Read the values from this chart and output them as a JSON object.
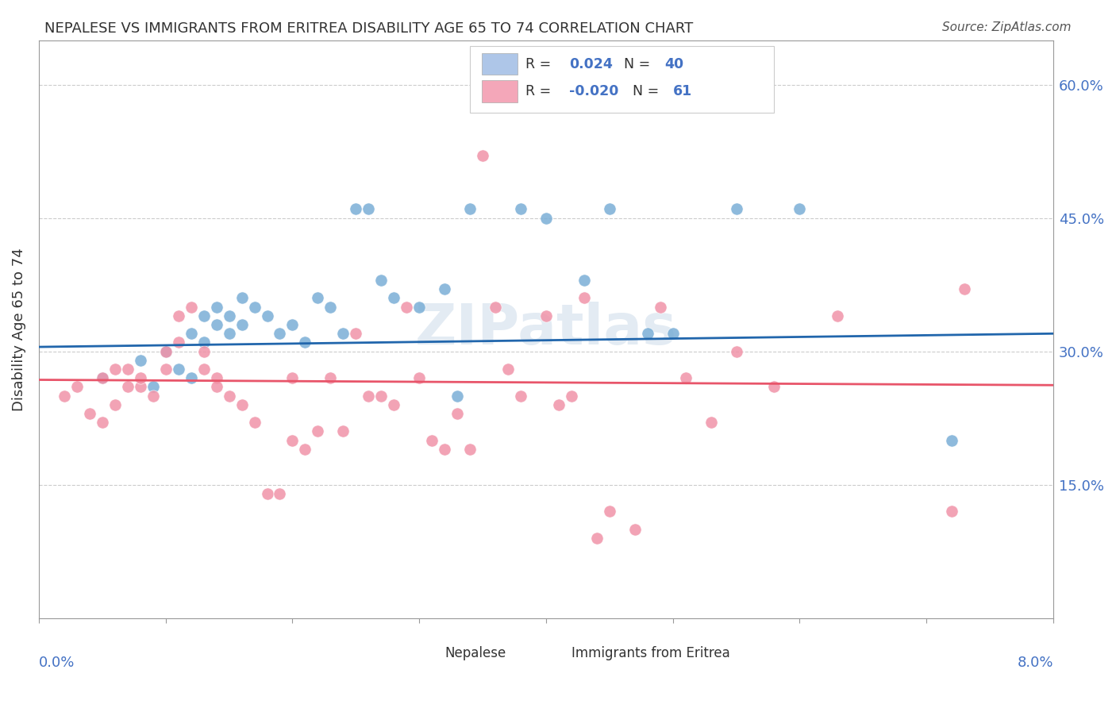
{
  "title": "NEPALESE VS IMMIGRANTS FROM ERITREA DISABILITY AGE 65 TO 74 CORRELATION CHART",
  "source": "Source: ZipAtlas.com",
  "ylabel": "Disability Age 65 to 74",
  "y_tick_labels": [
    "15.0%",
    "30.0%",
    "45.0%",
    "60.0%"
  ],
  "y_tick_values": [
    0.15,
    0.3,
    0.45,
    0.6
  ],
  "x_min": 0.0,
  "x_max": 0.08,
  "y_min": 0.0,
  "y_max": 0.65,
  "legend1_color": "#aec6e8",
  "legend2_color": "#f4a7b9",
  "dot_color_blue": "#7aaed6",
  "dot_color_pink": "#f093a8",
  "trend_color_blue": "#2166ac",
  "trend_color_pink": "#e8556a",
  "watermark": "ZIPatlas",
  "blue_scatter_x": [
    0.005,
    0.008,
    0.009,
    0.01,
    0.011,
    0.012,
    0.012,
    0.013,
    0.013,
    0.014,
    0.014,
    0.015,
    0.015,
    0.016,
    0.016,
    0.017,
    0.018,
    0.019,
    0.02,
    0.021,
    0.022,
    0.023,
    0.024,
    0.025,
    0.026,
    0.027,
    0.028,
    0.03,
    0.032,
    0.033,
    0.034,
    0.038,
    0.04,
    0.043,
    0.045,
    0.048,
    0.05,
    0.055,
    0.06,
    0.072
  ],
  "blue_scatter_y": [
    0.27,
    0.29,
    0.26,
    0.3,
    0.28,
    0.32,
    0.27,
    0.31,
    0.34,
    0.33,
    0.35,
    0.34,
    0.32,
    0.36,
    0.33,
    0.35,
    0.34,
    0.32,
    0.33,
    0.31,
    0.36,
    0.35,
    0.32,
    0.46,
    0.46,
    0.38,
    0.36,
    0.35,
    0.37,
    0.25,
    0.46,
    0.46,
    0.45,
    0.38,
    0.46,
    0.32,
    0.32,
    0.46,
    0.46,
    0.2
  ],
  "pink_scatter_x": [
    0.002,
    0.003,
    0.004,
    0.005,
    0.005,
    0.006,
    0.006,
    0.007,
    0.007,
    0.008,
    0.008,
    0.009,
    0.01,
    0.01,
    0.011,
    0.011,
    0.012,
    0.013,
    0.013,
    0.014,
    0.014,
    0.015,
    0.016,
    0.017,
    0.018,
    0.019,
    0.02,
    0.02,
    0.021,
    0.022,
    0.023,
    0.024,
    0.025,
    0.026,
    0.027,
    0.028,
    0.029,
    0.03,
    0.031,
    0.032,
    0.033,
    0.034,
    0.035,
    0.036,
    0.037,
    0.038,
    0.04,
    0.041,
    0.042,
    0.043,
    0.044,
    0.045,
    0.047,
    0.049,
    0.051,
    0.053,
    0.055,
    0.058,
    0.063,
    0.072,
    0.073
  ],
  "pink_scatter_y": [
    0.25,
    0.26,
    0.23,
    0.27,
    0.22,
    0.28,
    0.24,
    0.26,
    0.28,
    0.26,
    0.27,
    0.25,
    0.3,
    0.28,
    0.34,
    0.31,
    0.35,
    0.3,
    0.28,
    0.27,
    0.26,
    0.25,
    0.24,
    0.22,
    0.14,
    0.14,
    0.2,
    0.27,
    0.19,
    0.21,
    0.27,
    0.21,
    0.32,
    0.25,
    0.25,
    0.24,
    0.35,
    0.27,
    0.2,
    0.19,
    0.23,
    0.19,
    0.52,
    0.35,
    0.28,
    0.25,
    0.34,
    0.24,
    0.25,
    0.36,
    0.09,
    0.12,
    0.1,
    0.35,
    0.27,
    0.22,
    0.3,
    0.26,
    0.34,
    0.12,
    0.37
  ],
  "blue_trend_x": [
    0.0,
    0.08
  ],
  "blue_trend_y": [
    0.305,
    0.32
  ],
  "pink_trend_x": [
    0.0,
    0.08
  ],
  "pink_trend_y": [
    0.268,
    0.262
  ]
}
